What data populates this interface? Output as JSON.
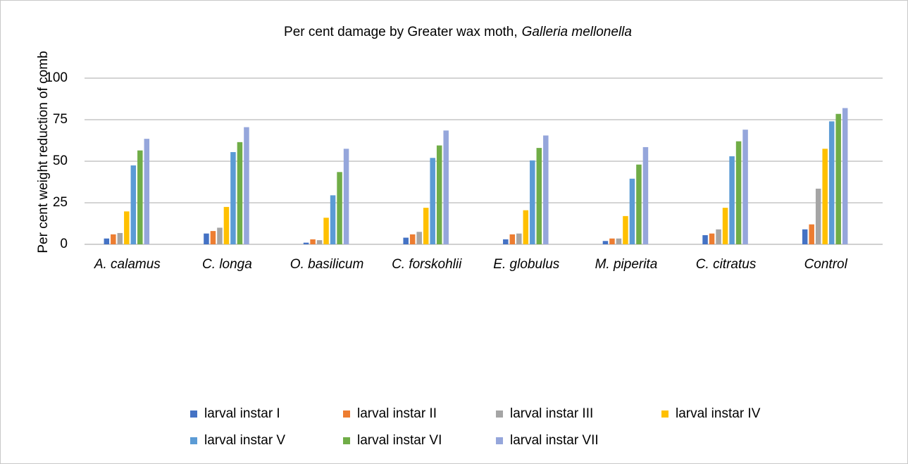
{
  "chart_data": {
    "type": "bar",
    "title": [
      "Per cent damage by Greater wax moth,",
      "Galleria mellonella"
    ],
    "y_label": "Per cent weight reduction of comb",
    "categories": [
      "A. calamus",
      "C. longa",
      "O. basilicum",
      "C. forskohlii",
      "E. globulus",
      "M. piperita",
      "C. citratus",
      "Control"
    ],
    "series": [
      {
        "name": "larval instar I",
        "color": "#4472c4",
        "values": [
          3.5,
          6.5,
          1,
          4,
          3,
          2,
          5.5,
          9
        ]
      },
      {
        "name": "larval instar II",
        "color": "#ed7d31",
        "values": [
          6,
          8,
          3,
          6,
          6,
          3.5,
          6.5,
          12
        ]
      },
      {
        "name": "larval instar III",
        "color": "#a5a5a5",
        "values": [
          6.8,
          10,
          2.5,
          7.5,
          6.5,
          3.5,
          9,
          33.5
        ]
      },
      {
        "name": "larval instar IV",
        "color": "#ffc000",
        "values": [
          19.8,
          22.5,
          16,
          22,
          20.5,
          17,
          22,
          57.5
        ]
      },
      {
        "name": "larval instar V",
        "color": "#5b9bd5",
        "values": [
          47.5,
          55.5,
          29.5,
          52,
          50.5,
          39.5,
          53,
          74
        ]
      },
      {
        "name": "larval instar VI",
        "color": "#70ad47",
        "values": [
          56.5,
          61.5,
          43.5,
          59.5,
          58,
          48,
          62,
          78.5
        ]
      },
      {
        "name": "larval instar VII",
        "color": "#95a6db",
        "values": [
          63.5,
          70.5,
          57.5,
          68.5,
          65.5,
          58.5,
          69,
          82
        ]
      }
    ],
    "ylim": [
      0,
      100
    ],
    "yticks": [
      0,
      25,
      50,
      75,
      100
    ],
    "grid": true,
    "legend": "bottom"
  }
}
